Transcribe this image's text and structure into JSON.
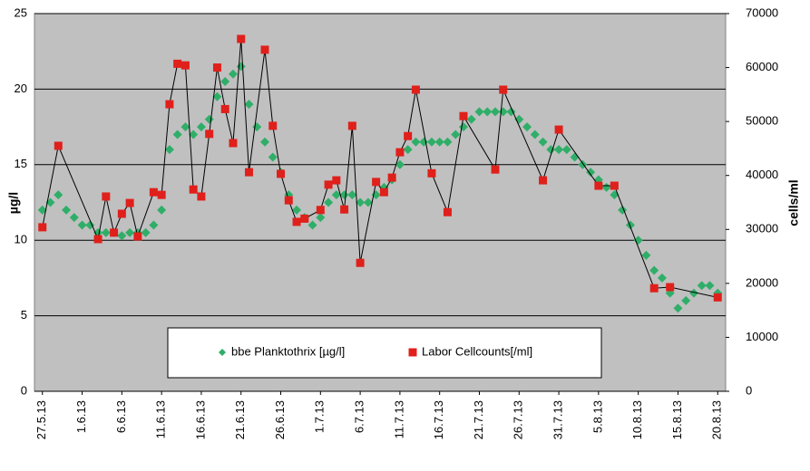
{
  "chart_data": {
    "type": "scatter",
    "y_label": "µg/l",
    "y2_label": "cells/ml",
    "xlim": [
      "2013-05-26",
      "2013-08-21"
    ],
    "xticks": [
      {
        "value": "2013-05-27",
        "label": "27.5.13"
      },
      {
        "value": "2013-06-01",
        "label": "1.6.13"
      },
      {
        "value": "2013-06-06",
        "label": "6.6.13"
      },
      {
        "value": "2013-06-11",
        "label": "11.6.13"
      },
      {
        "value": "2013-06-16",
        "label": "16.6.13"
      },
      {
        "value": "2013-06-21",
        "label": "21.6.13"
      },
      {
        "value": "2013-06-26",
        "label": "26.6.13"
      },
      {
        "value": "2013-07-01",
        "label": "1.7.13"
      },
      {
        "value": "2013-07-06",
        "label": "6.7.13"
      },
      {
        "value": "2013-07-11",
        "label": "11.7.13"
      },
      {
        "value": "2013-07-16",
        "label": "16.7.13"
      },
      {
        "value": "2013-07-21",
        "label": "21.7.13"
      },
      {
        "value": "2013-07-26",
        "label": "26.7.13"
      },
      {
        "value": "2013-07-31",
        "label": "31.7.13"
      },
      {
        "value": "2013-08-05",
        "label": "5.8.13"
      },
      {
        "value": "2013-08-10",
        "label": "10.8.13"
      },
      {
        "value": "2013-08-15",
        "label": "15.8.13"
      },
      {
        "value": "2013-08-20",
        "label": "20.8.13"
      }
    ],
    "ylim": [
      0,
      25
    ],
    "yticks": [
      0,
      5,
      10,
      15,
      20,
      25
    ],
    "y2lim": [
      0,
      70000
    ],
    "y2ticks": [
      0,
      10000,
      20000,
      30000,
      40000,
      50000,
      60000,
      70000
    ],
    "grid": true,
    "legend": "bottom-center",
    "series": [
      {
        "name": "bbe Planktothrix [µg/l]",
        "color": "#2fae68",
        "marker": "diamond",
        "x": [
          "2013-05-27",
          "2013-05-28",
          "2013-05-29",
          "2013-05-30",
          "2013-05-31",
          "2013-06-01",
          "2013-06-02",
          "2013-06-03",
          "2013-06-04",
          "2013-06-05",
          "2013-06-06",
          "2013-06-07",
          "2013-06-08",
          "2013-06-09",
          "2013-06-10",
          "2013-06-11",
          "2013-06-12",
          "2013-06-13",
          "2013-06-14",
          "2013-06-15",
          "2013-06-16",
          "2013-06-17",
          "2013-06-18",
          "2013-06-19",
          "2013-06-20",
          "2013-06-21",
          "2013-06-22",
          "2013-06-23",
          "2013-06-24",
          "2013-06-25",
          "2013-06-26",
          "2013-06-27",
          "2013-06-28",
          "2013-06-29",
          "2013-06-30",
          "2013-07-01",
          "2013-07-02",
          "2013-07-03",
          "2013-07-04",
          "2013-07-05",
          "2013-07-06",
          "2013-07-07",
          "2013-07-08",
          "2013-07-09",
          "2013-07-10",
          "2013-07-11",
          "2013-07-12",
          "2013-07-13",
          "2013-07-14",
          "2013-07-15",
          "2013-07-16",
          "2013-07-17",
          "2013-07-18",
          "2013-07-19",
          "2013-07-20",
          "2013-07-21",
          "2013-07-22",
          "2013-07-23",
          "2013-07-24",
          "2013-07-25",
          "2013-07-26",
          "2013-07-27",
          "2013-07-28",
          "2013-07-29",
          "2013-07-30",
          "2013-07-31",
          "2013-08-01",
          "2013-08-02",
          "2013-08-03",
          "2013-08-04",
          "2013-08-05",
          "2013-08-06",
          "2013-08-07",
          "2013-08-08",
          "2013-08-09",
          "2013-08-10",
          "2013-08-11",
          "2013-08-12",
          "2013-08-13",
          "2013-08-14",
          "2013-08-15",
          "2013-08-16",
          "2013-08-17",
          "2013-08-18",
          "2013-08-19",
          "2013-08-20"
        ],
        "values": [
          12,
          12.5,
          13,
          12,
          11.5,
          11,
          11,
          10.5,
          10.5,
          10.5,
          10.3,
          10.5,
          10.5,
          10.5,
          11,
          12,
          16,
          17,
          17.5,
          17,
          17.5,
          18,
          19.5,
          20.5,
          21,
          21.5,
          19,
          17.5,
          16.5,
          15.5,
          14.5,
          13,
          12,
          11.5,
          11,
          11.5,
          12.5,
          13,
          13,
          13,
          12.5,
          12.5,
          13,
          13.5,
          14,
          15,
          16,
          16.5,
          16.5,
          16.5,
          16.5,
          16.5,
          17,
          17.5,
          18,
          18.5,
          18.5,
          18.5,
          18.5,
          18.5,
          18,
          17.5,
          17,
          16.5,
          16,
          16,
          16,
          15.5,
          15,
          14.5,
          14,
          13.5,
          13,
          12,
          11,
          10,
          9,
          8,
          7.5,
          6.5,
          5.5,
          6,
          6.5,
          7,
          7,
          6.5
        ]
      },
      {
        "name": "Labor Cellcounts[/ml]",
        "color": "#e0201b",
        "marker": "square",
        "line_color": "#000000",
        "axis": "y2",
        "x": [
          "2013-05-27",
          "2013-05-29",
          "2013-06-03",
          "2013-06-04",
          "2013-06-05",
          "2013-06-06",
          "2013-06-07",
          "2013-06-08",
          "2013-06-10",
          "2013-06-11",
          "2013-06-12",
          "2013-06-13",
          "2013-06-14",
          "2013-06-15",
          "2013-06-16",
          "2013-06-17",
          "2013-06-18",
          "2013-06-19",
          "2013-06-20",
          "2013-06-21",
          "2013-06-22",
          "2013-06-24",
          "2013-06-25",
          "2013-06-26",
          "2013-06-27",
          "2013-06-28",
          "2013-06-29",
          "2013-07-01",
          "2013-07-02",
          "2013-07-03",
          "2013-07-04",
          "2013-07-05",
          "2013-07-06",
          "2013-07-08",
          "2013-07-09",
          "2013-07-10",
          "2013-07-11",
          "2013-07-12",
          "2013-07-13",
          "2013-07-15",
          "2013-07-17",
          "2013-07-19",
          "2013-07-23",
          "2013-07-24",
          "2013-07-29",
          "2013-07-31",
          "2013-08-05",
          "2013-08-07",
          "2013-08-12",
          "2013-08-14",
          "2013-08-20"
        ],
        "values": [
          30400,
          45500,
          28200,
          36100,
          29400,
          32900,
          34900,
          28700,
          36900,
          36400,
          53200,
          60700,
          60400,
          37400,
          36100,
          47700,
          60000,
          52300,
          46000,
          65300,
          40600,
          63300,
          49200,
          40300,
          35400,
          31400,
          32000,
          33600,
          38300,
          39100,
          33700,
          49200,
          23800,
          38800,
          36900,
          39600,
          44300,
          47300,
          55900,
          40400,
          33200,
          51000,
          41100,
          55900,
          39100,
          48500,
          38100,
          38100,
          19100,
          19300,
          17400
        ]
      }
    ]
  }
}
